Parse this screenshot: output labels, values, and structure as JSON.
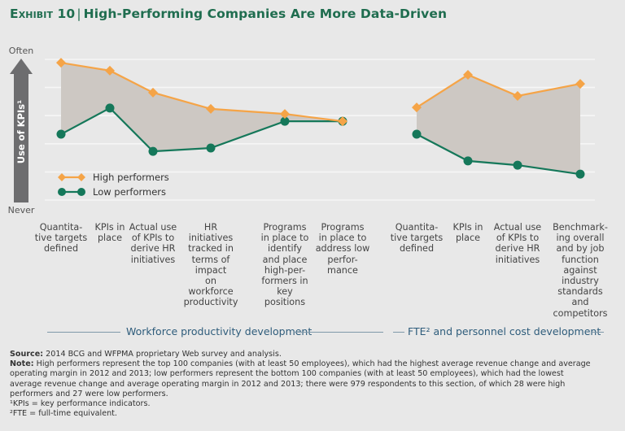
{
  "title": {
    "exhibit": "Exhibit 10",
    "separator": "|",
    "text": "High-Performing Companies Are More Data-Driven"
  },
  "chart_data": {
    "type": "line",
    "title": "High-Performing Companies Are More Data-Driven",
    "ylabel": "Use of KPIs¹",
    "y_top_label": "Often",
    "y_bottom_label": "Never",
    "ylim": [
      0,
      5
    ],
    "grid": true,
    "legend": {
      "placement": "bottom-left",
      "entries": [
        "High performers",
        "Low performers"
      ]
    },
    "colors": {
      "high": "#f5a447",
      "low": "#15785a",
      "fill": "#cdc8c3",
      "arrow": "#6d6d6f",
      "grid": "#f6f6f6"
    },
    "panels": [
      {
        "name": "Workforce productivity development",
        "categories": [
          "Quantita-\ntive targets\ndefined",
          "KPIs in\nplace",
          "Actual use\nof KPIs to\nderive HR\ninitiatives",
          "HR\ninitiatives\ntracked in\nterms of\nimpact\non\nworkforce\nproductivity",
          "Programs\nin place to\nidentify\nand place\nhigh-per-\nformers in\nkey\npositions",
          "Programs\nin place to\naddress low\nperfor-\nmance"
        ],
        "series": [
          {
            "name": "High performers",
            "values": [
              4.88,
              4.6,
              3.82,
              3.24,
              3.06,
              2.8
            ]
          },
          {
            "name": "Low performers",
            "values": [
              2.34,
              3.27,
              1.73,
              1.85,
              2.8,
              2.8
            ]
          }
        ]
      },
      {
        "name": "FTE² and personnel cost development",
        "categories": [
          "Quantita-\ntive targets\ndefined",
          "KPIs in\nplace",
          "Actual use\nof KPIs to\nderive HR\ninitiatives",
          "Benchmark-\ning overall\nand by job\nfunction\nagainst\nindustry\nstandards\nand\ncompetitors"
        ],
        "series": [
          {
            "name": "High performers",
            "values": [
              3.29,
              4.45,
              3.7,
              4.13
            ]
          },
          {
            "name": "Low performers",
            "values": [
              2.34,
              1.39,
              1.24,
              0.92
            ]
          }
        ]
      }
    ]
  },
  "notes": {
    "source_label": "Source:",
    "source_text": " 2014 BCG and WFPMA proprietary Web survey and analysis.",
    "note_label": "Note:",
    "note_lines": [
      " High performers represent the top 100 companies (with at least 50 employees), which had the highest average revenue change and average",
      "operating margin in 2012 and 2013; low performers represent the bottom 100 companies (with at least 50 employees), which had the lowest",
      "average revenue change and average operating margin in 2012 and 2013; there were 979 respondents to this section, of which 28 were high",
      "performers and 27 were low performers."
    ],
    "footnote1": "¹KPIs = key performance indicators.",
    "footnote2": "²FTE = full-time equivalent."
  }
}
